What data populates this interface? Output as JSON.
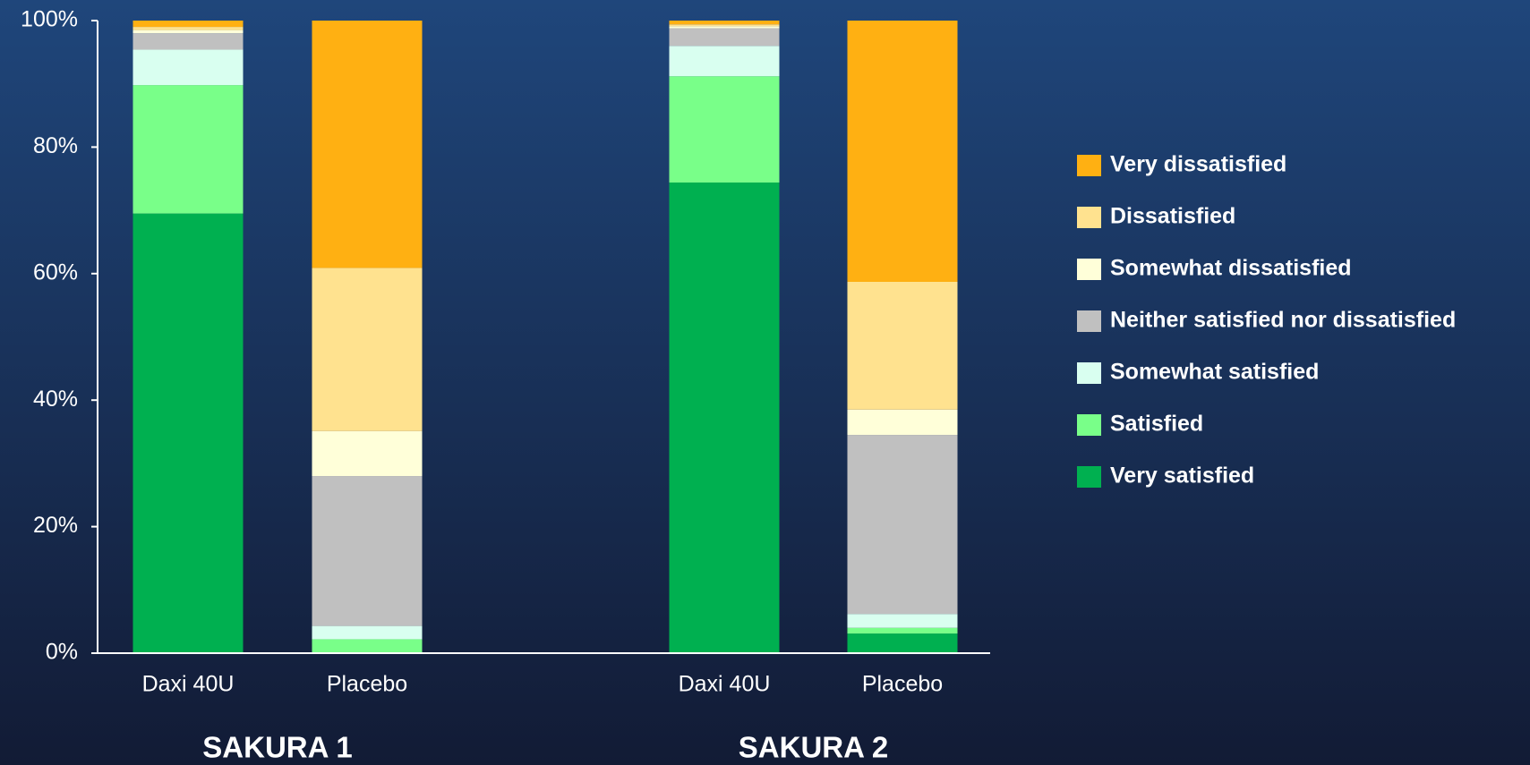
{
  "chart_data": {
    "type": "stacked-bar",
    "categories": [
      "Daxi 40U",
      "Placebo",
      "Daxi 40U",
      "Placebo"
    ],
    "group_labels": [
      "SAKURA 1",
      "SAKURA 2"
    ],
    "series": [
      {
        "name": "Very satisfied",
        "color": "#00b050",
        "values": [
          69.5,
          0,
          74.4,
          3.1
        ]
      },
      {
        "name": "Satisfied",
        "color": "#79ff89",
        "values": [
          20.3,
          2.2,
          16.8,
          0.9
        ]
      },
      {
        "name": "Somewhat satisfied",
        "color": "#d9fff0",
        "values": [
          5.6,
          2.1,
          4.8,
          2.2
        ]
      },
      {
        "name": "Neither satisfied nor dissatisfied",
        "color": "#c0c0c0",
        "values": [
          2.6,
          23.7,
          2.8,
          28.3
        ]
      },
      {
        "name": "Somewhat dissatisfied",
        "color": "#ffffd9",
        "values": [
          0.5,
          7.1,
          0.3,
          4.0
        ]
      },
      {
        "name": "Dissatisfied",
        "color": "#ffe28f",
        "values": [
          0.5,
          25.8,
          0.3,
          20.2
        ]
      },
      {
        "name": "Very dissatisfied",
        "color": "#ffb012",
        "values": [
          1.0,
          39.1,
          0.6,
          41.3
        ]
      }
    ],
    "ylim": [
      0,
      100
    ],
    "yticks": [
      {
        "value": 0,
        "label": "0%"
      },
      {
        "value": 20,
        "label": "20%"
      },
      {
        "value": 40,
        "label": "40%"
      },
      {
        "value": 60,
        "label": "60%"
      },
      {
        "value": 80,
        "label": "80%"
      },
      {
        "value": 100,
        "label": "100%"
      }
    ]
  }
}
